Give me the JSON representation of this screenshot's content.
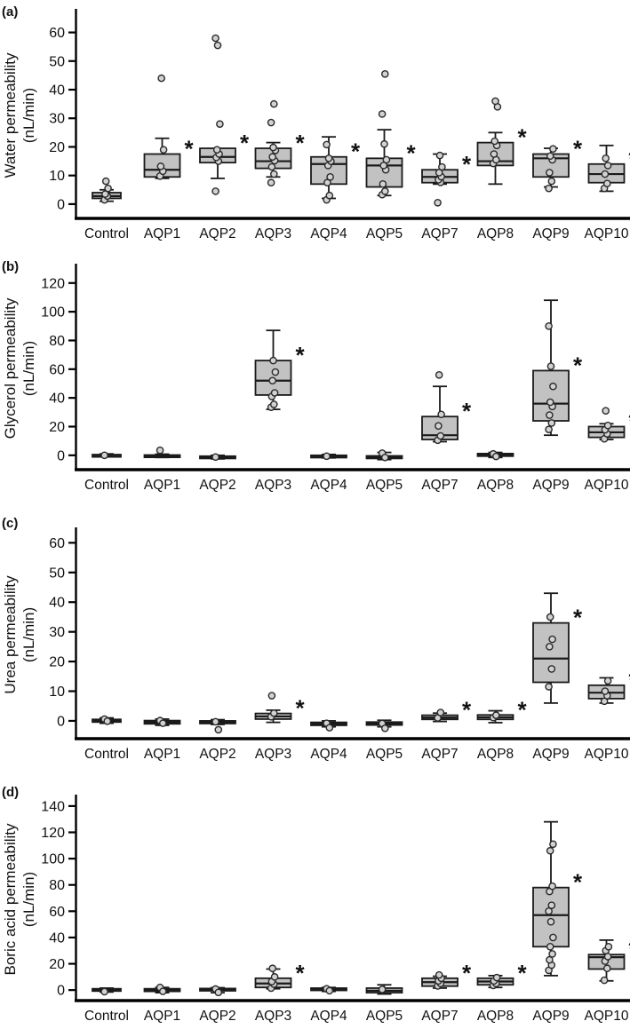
{
  "figure": {
    "background": "#ffffff",
    "box_fill": "#c2c2c2",
    "box_stroke": "#1a1a1a",
    "point_fill": "#d2d2d2",
    "point_stroke": "#2a2a2a",
    "axis_color": "#000000",
    "text_color": "#111111",
    "significance_marker": "*"
  },
  "chart_data": [
    {
      "type": "box",
      "panel_letter": "(a)",
      "ylabel": "Water permeability",
      "ylabel_unit": "(nL/min)",
      "ylim": [
        -5,
        67
      ],
      "yticks": [
        0,
        10,
        20,
        30,
        40,
        50,
        60
      ],
      "categories": [
        "Control",
        "AQP1",
        "AQP2",
        "AQP3",
        "AQP4",
        "AQP5",
        "AQP7",
        "AQP8",
        "AQP9",
        "AQP10"
      ],
      "boxes": [
        {
          "category": "Control",
          "whisker_low": 1,
          "q1": 2,
          "median": 2.8,
          "q3": 4,
          "whisker_high": 5,
          "points": [
            1.5,
            2.8,
            3.5,
            5.5,
            8
          ],
          "significant": false
        },
        {
          "category": "AQP1",
          "whisker_low": 9,
          "q1": 9.5,
          "median": 12,
          "q3": 17.5,
          "whisker_high": 23,
          "points": [
            9.8,
            11.5,
            13.2,
            19,
            44
          ],
          "significant": true
        },
        {
          "category": "AQP2",
          "whisker_low": 9,
          "q1": 14.5,
          "median": 16.5,
          "q3": 19.5,
          "whisker_high": 19.5,
          "points": [
            4.5,
            15,
            16.3,
            17.5,
            19,
            28,
            55.5,
            58
          ],
          "significant": true
        },
        {
          "category": "AQP3",
          "whisker_low": 9.5,
          "q1": 12.5,
          "median": 15,
          "q3": 19.5,
          "whisker_high": 21.5,
          "points": [
            7.5,
            10.5,
            13,
            15.2,
            16.5,
            18.8,
            19.8,
            28.5,
            35
          ],
          "significant": true
        },
        {
          "category": "AQP4",
          "whisker_low": 2,
          "q1": 7,
          "median": 14,
          "q3": 16.5,
          "whisker_high": 23.5,
          "points": [
            1.5,
            3,
            7.5,
            9.5,
            13.5,
            15,
            16,
            20.8
          ],
          "significant": true
        },
        {
          "category": "AQP5",
          "whisker_low": 3,
          "q1": 6,
          "median": 13.5,
          "q3": 16,
          "whisker_high": 26,
          "points": [
            3.3,
            4.5,
            7,
            12,
            13.5,
            15.5,
            21,
            31.5,
            45.5
          ],
          "significant": true
        },
        {
          "category": "AQP7",
          "whisker_low": 7,
          "q1": 7.5,
          "median": 9.5,
          "q3": 12,
          "whisker_high": 17.5,
          "points": [
            0.5,
            7.6,
            8.5,
            9.6,
            11,
            13,
            17
          ],
          "significant": true
        },
        {
          "category": "AQP8",
          "whisker_low": 7,
          "q1": 13.5,
          "median": 15,
          "q3": 21.5,
          "whisker_high": 25,
          "points": [
            14.2,
            15.5,
            17.5,
            20.5,
            22,
            34,
            36
          ],
          "significant": true
        },
        {
          "category": "AQP9",
          "whisker_low": 6,
          "q1": 9.5,
          "median": 16,
          "q3": 17.5,
          "whisker_high": 19.5,
          "points": [
            5.5,
            8,
            11,
            15.5,
            16.8,
            19.3
          ],
          "significant": true
        },
        {
          "category": "AQP10",
          "whisker_low": 4.5,
          "q1": 7.5,
          "median": 10.5,
          "q3": 14,
          "whisker_high": 20.5,
          "points": [
            5.5,
            7.2,
            10.5,
            13.5,
            16
          ],
          "significant": true
        }
      ]
    },
    {
      "type": "box",
      "panel_letter": "(b)",
      "ylabel": "Glycerol permeability",
      "ylabel_unit": "(nL/min)",
      "ylim": [
        -10,
        131
      ],
      "yticks": [
        0,
        20,
        40,
        60,
        80,
        100,
        120
      ],
      "categories": [
        "Control",
        "AQP1",
        "AQP2",
        "AQP3",
        "AQP4",
        "AQP5",
        "AQP7",
        "AQP8",
        "AQP9",
        "AQP10"
      ],
      "boxes": [
        {
          "category": "Control",
          "whisker_low": -1,
          "q1": -0.5,
          "median": 0,
          "q3": 0.5,
          "whisker_high": 1,
          "points": [
            0
          ],
          "significant": false
        },
        {
          "category": "AQP1",
          "whisker_low": -1.5,
          "q1": -1,
          "median": -0.5,
          "q3": 0.2,
          "whisker_high": 0.8,
          "points": [
            3.5
          ],
          "significant": false
        },
        {
          "category": "AQP2",
          "whisker_low": -2.5,
          "q1": -1.8,
          "median": -1.2,
          "q3": -0.6,
          "whisker_high": 0,
          "points": [
            -1.2
          ],
          "significant": false
        },
        {
          "category": "AQP3",
          "whisker_low": 32,
          "q1": 42,
          "median": 52,
          "q3": 66,
          "whisker_high": 87,
          "points": [
            33.5,
            35.5,
            41,
            43.5,
            52,
            58,
            66
          ],
          "significant": true
        },
        {
          "category": "AQP4",
          "whisker_low": -1.8,
          "q1": -1.2,
          "median": -0.6,
          "q3": 0,
          "whisker_high": 0.6,
          "points": [
            -0.6
          ],
          "significant": false
        },
        {
          "category": "AQP5",
          "whisker_low": -3,
          "q1": -2.2,
          "median": -1.4,
          "q3": -0.4,
          "whisker_high": 2,
          "points": [
            1.5,
            -1.5
          ],
          "significant": false
        },
        {
          "category": "AQP7",
          "whisker_low": 9.5,
          "q1": 11,
          "median": 14,
          "q3": 27,
          "whisker_high": 48,
          "points": [
            10.5,
            13.5,
            20.5,
            28.5,
            56
          ],
          "significant": true
        },
        {
          "category": "AQP8",
          "whisker_low": -1.5,
          "q1": -0.6,
          "median": 0.3,
          "q3": 1.2,
          "whisker_high": 2,
          "points": [
            1,
            -0.8
          ],
          "significant": false
        },
        {
          "category": "AQP9",
          "whisker_low": 14,
          "q1": 24,
          "median": 36,
          "q3": 59,
          "whisker_high": 108,
          "points": [
            18,
            22.5,
            28,
            34,
            37,
            48,
            62,
            90
          ],
          "significant": true
        },
        {
          "category": "AQP10",
          "whisker_low": 11,
          "q1": 12.5,
          "median": 16,
          "q3": 20,
          "whisker_high": 22,
          "points": [
            11.5,
            15,
            17.8,
            20.8,
            31
          ],
          "significant": true
        }
      ]
    },
    {
      "type": "box",
      "panel_letter": "(c)",
      "ylabel": "Urea permeability",
      "ylabel_unit": "(nL/min)",
      "ylim": [
        -6,
        64
      ],
      "yticks": [
        0,
        10,
        20,
        30,
        40,
        50,
        60
      ],
      "categories": [
        "Control",
        "AQP1",
        "AQP2",
        "AQP3",
        "AQP4",
        "AQP5",
        "AQP7",
        "AQP8",
        "AQP9",
        "AQP10"
      ],
      "boxes": [
        {
          "category": "Control",
          "whisker_low": -0.8,
          "q1": -0.4,
          "median": 0,
          "q3": 0.5,
          "whisker_high": 1,
          "points": [
            0.6,
            -0.1
          ],
          "significant": false
        },
        {
          "category": "AQP1",
          "whisker_low": -1.5,
          "q1": -1,
          "median": -0.5,
          "q3": 0.1,
          "whisker_high": 0.6,
          "points": [
            0.1,
            -0.8
          ],
          "significant": false
        },
        {
          "category": "AQP2",
          "whisker_low": -1.2,
          "q1": -0.9,
          "median": -0.5,
          "q3": 0,
          "whisker_high": 0.4,
          "points": [
            -0.3,
            -3
          ],
          "significant": false
        },
        {
          "category": "AQP3",
          "whisker_low": -0.5,
          "q1": 0.6,
          "median": 1.5,
          "q3": 2.5,
          "whisker_high": 3.6,
          "points": [
            1.4,
            2.6,
            8.5
          ],
          "significant": true
        },
        {
          "category": "AQP4",
          "whisker_low": -2,
          "q1": -1.5,
          "median": -1,
          "q3": -0.5,
          "whisker_high": 0,
          "points": [
            -0.8,
            -2.3
          ],
          "significant": false
        },
        {
          "category": "AQP5",
          "whisker_low": -2,
          "q1": -1.4,
          "median": -0.9,
          "q3": -0.4,
          "whisker_high": 0.2,
          "points": [
            -0.9,
            -2.5
          ],
          "significant": false
        },
        {
          "category": "AQP7",
          "whisker_low": -0.2,
          "q1": 0.5,
          "median": 1.1,
          "q3": 1.9,
          "whisker_high": 2.6,
          "points": [
            1,
            2.8
          ],
          "significant": true
        },
        {
          "category": "AQP8",
          "whisker_low": -0.6,
          "q1": 0.5,
          "median": 1.2,
          "q3": 2,
          "whisker_high": 3.4,
          "points": [
            1.1,
            1.9
          ],
          "significant": true
        },
        {
          "category": "AQP9",
          "whisker_low": 6,
          "q1": 13,
          "median": 21,
          "q3": 33,
          "whisker_high": 43,
          "points": [
            11.5,
            17.5,
            25,
            27.5,
            35
          ],
          "significant": true
        },
        {
          "category": "AQP10",
          "whisker_low": 6,
          "q1": 7.5,
          "median": 9.5,
          "q3": 12,
          "whisker_high": 14.5,
          "points": [
            6.6,
            8.5,
            10,
            13.5
          ],
          "significant": true
        }
      ]
    },
    {
      "type": "box",
      "panel_letter": "(d)",
      "ylabel": "Boric acid permeability",
      "ylabel_unit": "(nL/min)",
      "ylim": [
        -8,
        146
      ],
      "yticks": [
        0,
        20,
        40,
        60,
        80,
        100,
        120,
        140
      ],
      "categories": [
        "Control",
        "AQP1",
        "AQP2",
        "AQP3",
        "AQP4",
        "AQP5",
        "AQP7",
        "AQP8",
        "AQP9",
        "AQP10"
      ],
      "boxes": [
        {
          "category": "Control",
          "whisker_low": -1.5,
          "q1": -0.5,
          "median": 0.3,
          "q3": 1,
          "whisker_high": 1.5,
          "points": [
            -1.2
          ],
          "significant": false
        },
        {
          "category": "AQP1",
          "whisker_low": -2,
          "q1": -1,
          "median": 0,
          "q3": 1,
          "whisker_high": 2,
          "points": [
            2,
            -1
          ],
          "significant": false
        },
        {
          "category": "AQP2",
          "whisker_low": -2,
          "q1": -0.5,
          "median": 0.4,
          "q3": 1.2,
          "whisker_high": 1.8,
          "points": [
            0.8,
            -1.8
          ],
          "significant": false
        },
        {
          "category": "AQP3",
          "whisker_low": 1,
          "q1": 2,
          "median": 5,
          "q3": 9,
          "whisker_high": 16,
          "points": [
            1.5,
            4.5,
            6.5,
            10,
            16.5
          ],
          "significant": true
        },
        {
          "category": "AQP4",
          "whisker_low": -1,
          "q1": 0,
          "median": 0.7,
          "q3": 1.5,
          "whisker_high": 2,
          "points": [
            1,
            -0.5
          ],
          "significant": false
        },
        {
          "category": "AQP5",
          "whisker_low": -3,
          "q1": -2,
          "median": -0.5,
          "q3": 1.5,
          "whisker_high": 4,
          "points": [
            0.5
          ],
          "significant": false
        },
        {
          "category": "AQP7",
          "whisker_low": 1.5,
          "q1": 3,
          "median": 6,
          "q3": 9,
          "whisker_high": 10.5,
          "points": [
            3.2,
            5,
            7,
            9,
            11.5
          ],
          "significant": true
        },
        {
          "category": "AQP8",
          "whisker_low": 2,
          "q1": 4,
          "median": 6.5,
          "q3": 9,
          "whisker_high": 11,
          "points": [
            3.5,
            5,
            7,
            9.5
          ],
          "significant": true
        },
        {
          "category": "AQP9",
          "whisker_low": 11,
          "q1": 33,
          "median": 57,
          "q3": 78,
          "whisker_high": 128,
          "points": [
            15,
            19,
            23,
            27.5,
            33,
            40,
            52,
            60,
            64.5,
            75,
            79,
            106,
            111
          ],
          "significant": true
        },
        {
          "category": "AQP10",
          "whisker_low": 7,
          "q1": 16,
          "median": 25,
          "q3": 27,
          "whisker_high": 38,
          "points": [
            7.5,
            16.5,
            22,
            25.5,
            30,
            33
          ],
          "significant": true
        }
      ]
    }
  ]
}
